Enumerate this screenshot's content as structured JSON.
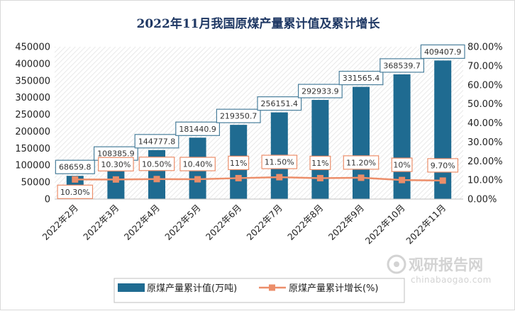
{
  "chart_data": {
    "type": "bar",
    "title": "2022年11月我国原煤产量累计值及累计增长",
    "categories": [
      "2022年2月",
      "2022年3月",
      "2022年4月",
      "2022年5月",
      "2022年6月",
      "2022年7月",
      "2022年8月",
      "2022年9月",
      "2022年10月",
      "2022年11月"
    ],
    "series": [
      {
        "name": "原煤产量累计值(万吨)",
        "type": "bar",
        "axis": "left",
        "color": "#1f6b91",
        "values": [
          68659.8,
          108385.9,
          144777.8,
          181440.9,
          219350.7,
          256151.4,
          292933.9,
          331565.4,
          368539.7,
          409407.9
        ],
        "labels": [
          "68659.8",
          "108385.9",
          "144777.8",
          "181440.9",
          "219350.7",
          "256151.4",
          "292933.9",
          "331565.4",
          "368539.7",
          "409407.9"
        ]
      },
      {
        "name": "原煤产量累计增长(%)",
        "type": "line",
        "axis": "right",
        "color": "#ec8e6a",
        "values": [
          10.3,
          10.3,
          10.5,
          10.4,
          11,
          11.5,
          11,
          11.2,
          10,
          9.7
        ],
        "labels": [
          "10.30%",
          "10.30%",
          "10.50%",
          "10.40%",
          "11%",
          "11.50%",
          "11%",
          "11.20%",
          "10%",
          "9.70%"
        ]
      }
    ],
    "ylim_left": [
      0,
      450000
    ],
    "ylim_right": [
      0,
      80
    ],
    "yticks_left": [
      "0",
      "50000",
      "100000",
      "150000",
      "200000",
      "250000",
      "300000",
      "350000",
      "400000",
      "450000"
    ],
    "yticks_right": [
      "0.00%",
      "10.00%",
      "20.00%",
      "30.00%",
      "40.00%",
      "50.00%",
      "60.00%",
      "70.00%",
      "80.00%"
    ],
    "xlabel": "",
    "ylabel": "",
    "legend_position": "bottom",
    "grid": false
  },
  "watermark": {
    "brand": "观研报告网",
    "url": "chinabaogao.com"
  }
}
